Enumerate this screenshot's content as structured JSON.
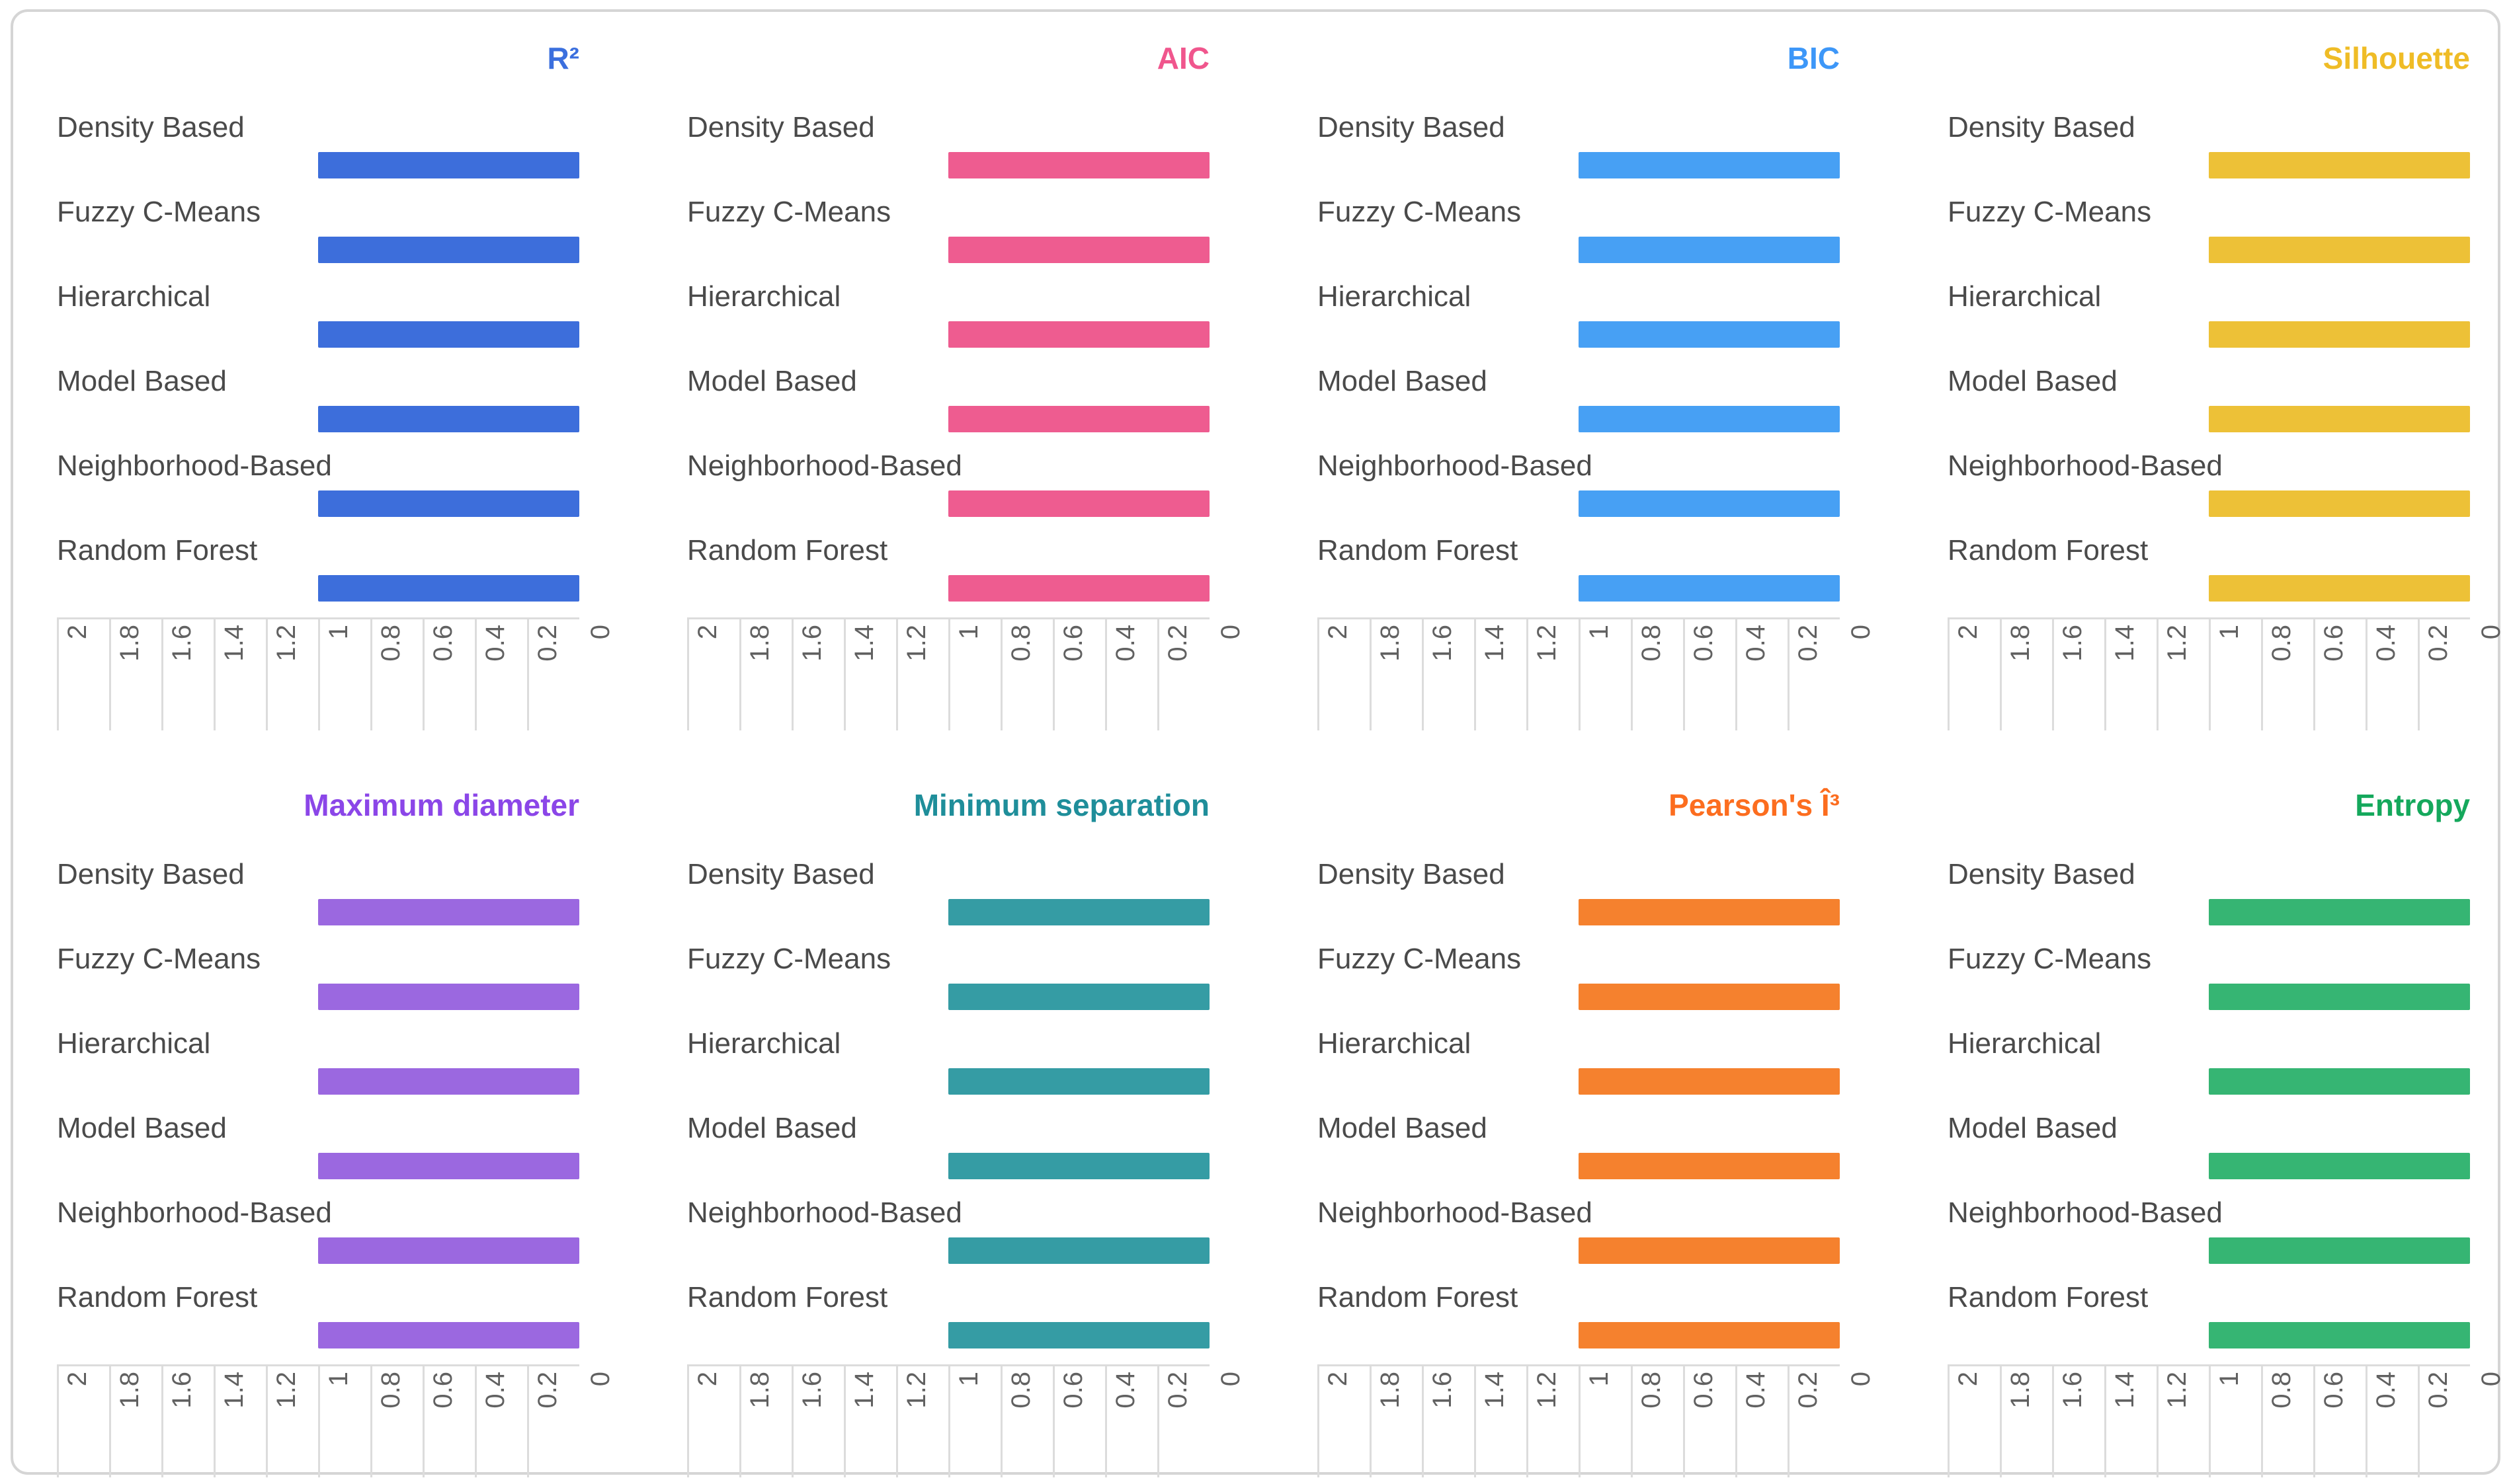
{
  "frame": {
    "border_color": "#d5d5d5",
    "background": "#ffffff"
  },
  "text_colors": {
    "category_label": "#4a4a4a",
    "axis_label": "#616161",
    "grid_line": "#dcdcdc"
  },
  "chart_data": [
    {
      "type": "bar",
      "title": "R²",
      "title_color": "#3b6fde",
      "bar_color": "#3d6edb",
      "categories": [
        "Density Based",
        "Fuzzy C-Means",
        "Hierarchical",
        "Model Based",
        "Neighborhood-Based",
        "Random Forest"
      ],
      "values": [
        1,
        1,
        1,
        1,
        1,
        1
      ],
      "axis": {
        "min": 0,
        "max": 2,
        "step": 0.2,
        "reversed": true,
        "tick_labels": [
          "2",
          "1.8",
          "1.6",
          "1.4",
          "1.2",
          "1",
          "0.8",
          "0.6",
          "0.4",
          "0.2",
          "0"
        ],
        "grid": true
      },
      "legend": "none"
    },
    {
      "type": "bar",
      "title": "AIC",
      "title_color": "#f0568d",
      "bar_color": "#ee5c90",
      "categories": [
        "Density Based",
        "Fuzzy C-Means",
        "Hierarchical",
        "Model Based",
        "Neighborhood-Based",
        "Random Forest"
      ],
      "values": [
        1,
        1,
        1,
        1,
        1,
        1
      ],
      "axis": {
        "min": 0,
        "max": 2,
        "step": 0.2,
        "reversed": true,
        "tick_labels": [
          "2",
          "1.8",
          "1.6",
          "1.4",
          "1.2",
          "1",
          "0.8",
          "0.6",
          "0.4",
          "0.2",
          "0"
        ],
        "grid": true
      },
      "legend": "none"
    },
    {
      "type": "bar",
      "title": "BIC",
      "title_color": "#3d97f8",
      "bar_color": "#47a0f4",
      "categories": [
        "Density Based",
        "Fuzzy C-Means",
        "Hierarchical",
        "Model Based",
        "Neighborhood-Based",
        "Random Forest"
      ],
      "values": [
        1,
        1,
        1,
        1,
        1,
        1
      ],
      "axis": {
        "min": 0,
        "max": 2,
        "step": 0.2,
        "reversed": true,
        "tick_labels": [
          "2",
          "1.8",
          "1.6",
          "1.4",
          "1.2",
          "1",
          "0.8",
          "0.6",
          "0.4",
          "0.2",
          "0"
        ],
        "grid": true
      },
      "legend": "none"
    },
    {
      "type": "bar",
      "title": "Silhouette",
      "title_color": "#efbc26",
      "bar_color": "#edc137",
      "categories": [
        "Density Based",
        "Fuzzy C-Means",
        "Hierarchical",
        "Model Based",
        "Neighborhood-Based",
        "Random Forest"
      ],
      "values": [
        1,
        1,
        1,
        1,
        1,
        1
      ],
      "axis": {
        "min": 0,
        "max": 2,
        "step": 0.2,
        "reversed": true,
        "tick_labels": [
          "2",
          "1.8",
          "1.6",
          "1.4",
          "1.2",
          "1",
          "0.8",
          "0.6",
          "0.4",
          "0.2",
          "0"
        ],
        "grid": true
      },
      "legend": "none"
    },
    {
      "type": "bar",
      "title": "Maximum diameter",
      "title_color": "#8b46e8",
      "bar_color": "#9b68e0",
      "categories": [
        "Density Based",
        "Fuzzy C-Means",
        "Hierarchical",
        "Model Based",
        "Neighborhood-Based",
        "Random Forest"
      ],
      "values": [
        1,
        1,
        1,
        1,
        1,
        1
      ],
      "axis": {
        "min": 0,
        "max": 2,
        "step": 0.2,
        "reversed": true,
        "tick_labels": [
          "2",
          "1.8",
          "1.6",
          "1.4",
          "1.2",
          "1",
          "0.8",
          "0.6",
          "0.4",
          "0.2",
          "0"
        ],
        "grid": true
      },
      "legend": "none"
    },
    {
      "type": "bar",
      "title": "Minimum separation",
      "title_color": "#1f8e9a",
      "bar_color": "#359ca4",
      "categories": [
        "Density Based",
        "Fuzzy C-Means",
        "Hierarchical",
        "Model Based",
        "Neighborhood-Based",
        "Random Forest"
      ],
      "values": [
        1,
        1,
        1,
        1,
        1,
        1
      ],
      "axis": {
        "min": 0,
        "max": 2,
        "step": 0.2,
        "reversed": true,
        "tick_labels": [
          "2",
          "1.8",
          "1.6",
          "1.4",
          "1.2",
          "1",
          "0.8",
          "0.6",
          "0.4",
          "0.2",
          "0"
        ],
        "grid": true
      },
      "legend": "none"
    },
    {
      "type": "bar",
      "title": "Pearson's Î³",
      "title_color": "#fc6d1f",
      "bar_color": "#f5812e",
      "categories": [
        "Density Based",
        "Fuzzy C-Means",
        "Hierarchical",
        "Model Based",
        "Neighborhood-Based",
        "Random Forest"
      ],
      "values": [
        1,
        1,
        1,
        1,
        1,
        1
      ],
      "axis": {
        "min": 0,
        "max": 2,
        "step": 0.2,
        "reversed": true,
        "tick_labels": [
          "2",
          "1.8",
          "1.6",
          "1.4",
          "1.2",
          "1",
          "0.8",
          "0.6",
          "0.4",
          "0.2",
          "0"
        ],
        "grid": true
      },
      "legend": "none"
    },
    {
      "type": "bar",
      "title": "Entropy",
      "title_color": "#15a85c",
      "bar_color": "#36b573",
      "categories": [
        "Density Based",
        "Fuzzy C-Means",
        "Hierarchical",
        "Model Based",
        "Neighborhood-Based",
        "Random Forest"
      ],
      "values": [
        1,
        1,
        1,
        1,
        1,
        1
      ],
      "axis": {
        "min": 0,
        "max": 2,
        "step": 0.2,
        "reversed": true,
        "tick_labels": [
          "2",
          "1.8",
          "1.6",
          "1.4",
          "1.2",
          "1",
          "0.8",
          "0.6",
          "0.4",
          "0.2",
          "0"
        ],
        "grid": true
      },
      "legend": "none"
    }
  ]
}
